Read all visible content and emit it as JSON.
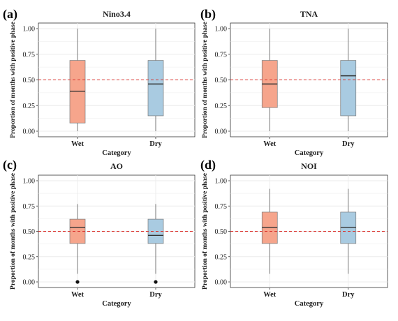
{
  "chart_data": [
    {
      "panel_label": "(a)",
      "type": "box",
      "title": "Nino3.4",
      "xlabel": "Category",
      "ylabel": "Proportion of months with positive phase",
      "categories": [
        "Wet",
        "Dry"
      ],
      "yticks": [
        "0.00",
        "0.25",
        "0.50",
        "0.75",
        "1.00"
      ],
      "ylim": [
        0,
        1
      ],
      "reference_line": 0.5,
      "boxes": [
        {
          "category": "Wet",
          "min": 0.0,
          "q1": 0.08,
          "median": 0.39,
          "q3": 0.69,
          "max": 1.0,
          "outliers": [],
          "color": "#f6a58c"
        },
        {
          "category": "Dry",
          "min": 0.0,
          "q1": 0.15,
          "median": 0.46,
          "q3": 0.69,
          "max": 1.0,
          "outliers": [],
          "color": "#a9cbe1"
        }
      ]
    },
    {
      "panel_label": "(b)",
      "type": "box",
      "title": "TNA",
      "xlabel": "Category",
      "ylabel": "Proportion of months with positive phase",
      "categories": [
        "Wet",
        "Dry"
      ],
      "yticks": [
        "0.00",
        "0.25",
        "0.50",
        "0.75",
        "1.00"
      ],
      "ylim": [
        0,
        1
      ],
      "reference_line": 0.5,
      "boxes": [
        {
          "category": "Wet",
          "min": 0.0,
          "q1": 0.23,
          "median": 0.46,
          "q3": 0.69,
          "max": 1.0,
          "outliers": [],
          "color": "#f6a58c"
        },
        {
          "category": "Dry",
          "min": 0.0,
          "q1": 0.15,
          "median": 0.54,
          "q3": 0.69,
          "max": 1.0,
          "outliers": [],
          "color": "#a9cbe1"
        }
      ]
    },
    {
      "panel_label": "(c)",
      "type": "box",
      "title": "AO",
      "xlabel": "Category",
      "ylabel": "Proportion of months with positive phase",
      "categories": [
        "Wet",
        "Dry"
      ],
      "yticks": [
        "0.00",
        "0.25",
        "0.50",
        "0.75",
        "1.00"
      ],
      "ylim": [
        0,
        1
      ],
      "reference_line": 0.5,
      "boxes": [
        {
          "category": "Wet",
          "min": 0.08,
          "q1": 0.38,
          "median": 0.54,
          "q3": 0.62,
          "max": 0.77,
          "outliers": [
            0.0
          ],
          "color": "#f6a58c"
        },
        {
          "category": "Dry",
          "min": 0.08,
          "q1": 0.38,
          "median": 0.46,
          "q3": 0.62,
          "max": 0.77,
          "outliers": [
            0.0
          ],
          "color": "#a9cbe1"
        }
      ]
    },
    {
      "panel_label": "(d)",
      "type": "box",
      "title": "NOI",
      "xlabel": "Category",
      "ylabel": "Proportion of months with positive phase",
      "categories": [
        "Wet",
        "Dry"
      ],
      "yticks": [
        "0.00",
        "0.25",
        "0.50",
        "0.75",
        "1.00"
      ],
      "ylim": [
        0,
        1
      ],
      "reference_line": 0.5,
      "boxes": [
        {
          "category": "Wet",
          "min": 0.08,
          "q1": 0.38,
          "median": 0.54,
          "q3": 0.69,
          "max": 0.92,
          "outliers": [],
          "color": "#f6a58c"
        },
        {
          "category": "Dry",
          "min": 0.08,
          "q1": 0.38,
          "median": 0.54,
          "q3": 0.69,
          "max": 0.92,
          "outliers": [],
          "color": "#a9cbe1"
        }
      ]
    }
  ],
  "colors": {
    "panel_border": "#333333",
    "grid": "#ebebeb",
    "box_stroke": "#7a7a7a",
    "median": "#333333",
    "whisker": "#595959",
    "reference_line": "#d9302b",
    "outlier": "#111111",
    "text": "#1a1a1a"
  }
}
